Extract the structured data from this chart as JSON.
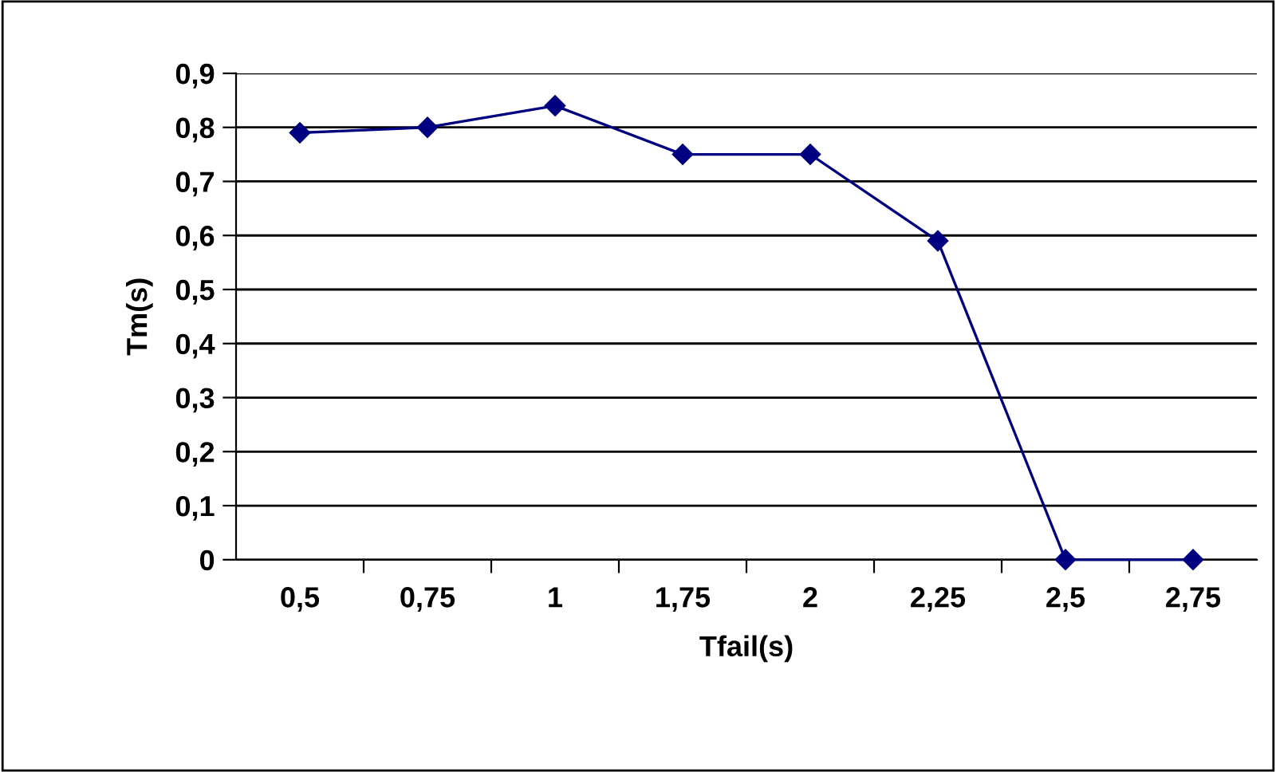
{
  "chart_data": {
    "type": "line",
    "xlabel": "Tfail(s)",
    "ylabel": "Tm(s)",
    "categories": [
      "0,5",
      "0,75",
      "1",
      "1,75",
      "2",
      "2,25",
      "2,5",
      "2,75"
    ],
    "series": [
      {
        "color": "#000080",
        "values": [
          0.79,
          0.8,
          0.84,
          0.75,
          0.75,
          0.59,
          0,
          0
        ]
      }
    ],
    "ylim": [
      0,
      0.9
    ],
    "yticks": [
      0,
      {
        "value": 0.1,
        "label": "0,1"
      },
      {
        "value": 0.2,
        "label": "0,2"
      },
      {
        "value": 0.3,
        "label": "0,3"
      },
      {
        "value": 0.4,
        "label": "0,4"
      },
      {
        "value": 0.5,
        "label": "0,5"
      },
      {
        "value": 0.6,
        "label": "0,6"
      },
      {
        "value": 0.7,
        "label": "0,7"
      },
      {
        "value": 0.8,
        "label": "0,8"
      },
      {
        "value": 0.9,
        "label": "0,9"
      }
    ],
    "grid": "y",
    "marker": "diamond",
    "line_style": "solid"
  }
}
